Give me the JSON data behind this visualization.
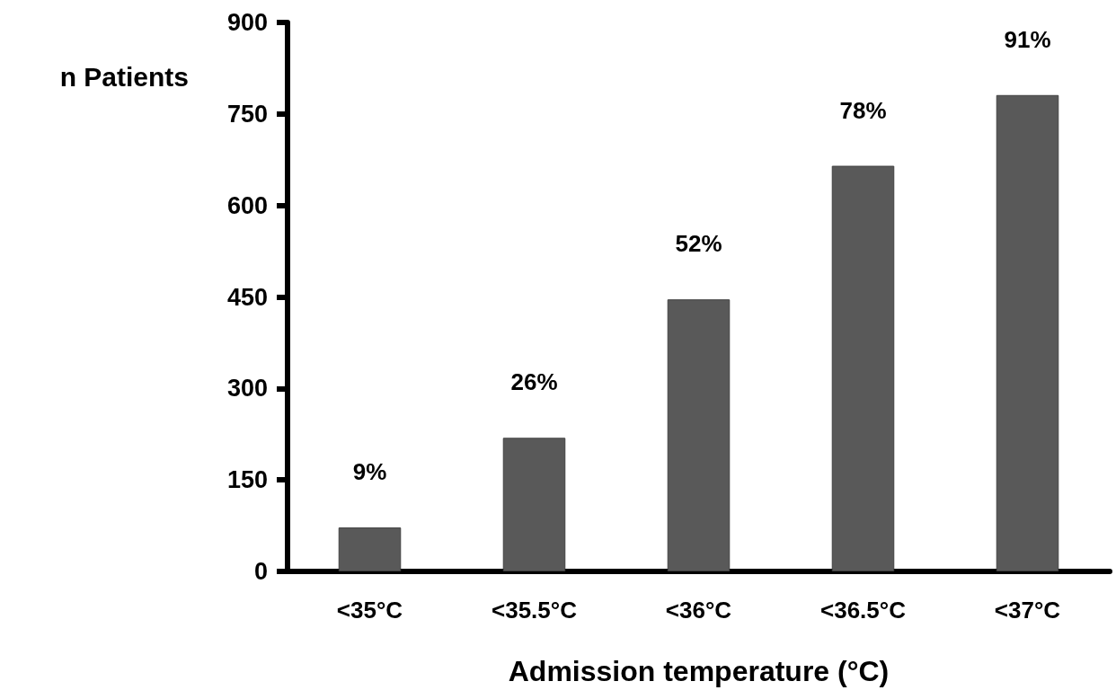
{
  "chart_data": {
    "type": "bar",
    "xlabel": "Admission temperature (°C)",
    "ylabel": "n Patients",
    "categories": [
      "<35°C",
      "<35.5°C",
      "<36°C",
      "<36.5°C",
      "<37°C"
    ],
    "values": [
      72,
      219,
      446,
      665,
      781
    ],
    "annotations": [
      "9%",
      "26%",
      "52%",
      "78%",
      "91%"
    ],
    "color": "#595959",
    "ylim": [
      0,
      900
    ],
    "yticks": [
      0,
      150,
      300,
      450,
      600,
      750,
      900
    ],
    "grid": false
  }
}
